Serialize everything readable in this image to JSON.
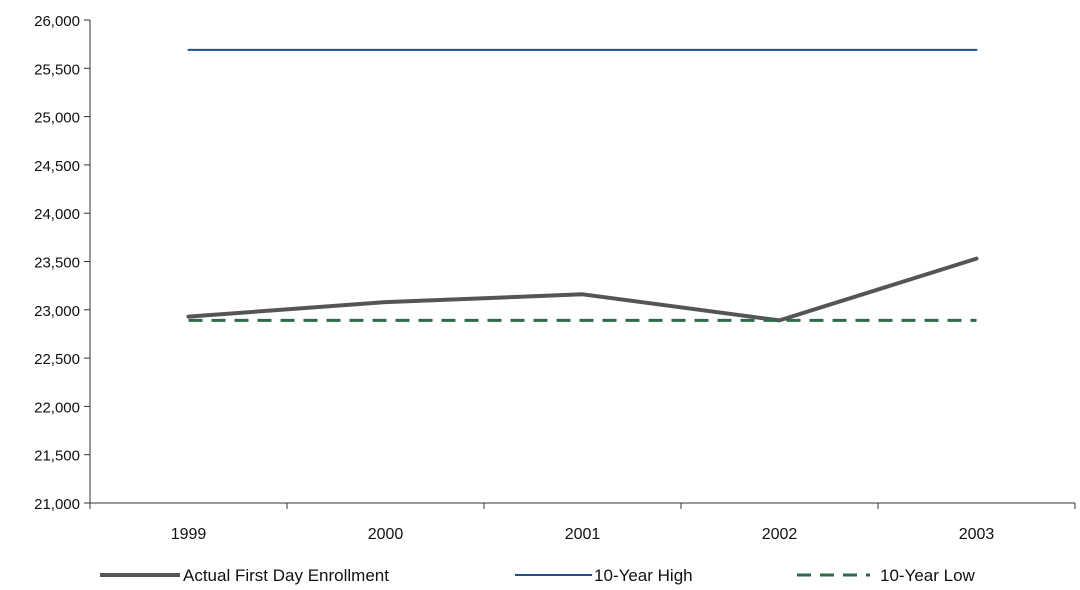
{
  "chart_data": {
    "type": "line",
    "title": "",
    "xlabel": "",
    "ylabel": "",
    "categories": [
      "1999",
      "2000",
      "2001",
      "2002",
      "2003"
    ],
    "ylim": [
      21000,
      26000
    ],
    "yticks": [
      "21,000",
      "21,500",
      "22,000",
      "22,500",
      "23,000",
      "23,500",
      "24,000",
      "24,500",
      "25,000",
      "25,500",
      "26,000"
    ],
    "ytick_values": [
      21000,
      21500,
      22000,
      22500,
      23000,
      23500,
      24000,
      24500,
      25000,
      25500,
      26000
    ],
    "grid": false,
    "legend_position": "bottom",
    "series": [
      {
        "name": "Actual First Day Enrollment",
        "values": [
          22930,
          23080,
          23160,
          22890,
          23530
        ],
        "color": "#555555",
        "style": "solid-thick"
      },
      {
        "name": "10-Year High",
        "values": [
          25690,
          25690,
          25690,
          25690,
          25690
        ],
        "color": "#1f4e8c",
        "style": "solid-thin"
      },
      {
        "name": "10-Year Low",
        "values": [
          22890,
          22890,
          22890,
          22890,
          22890
        ],
        "color": "#2e6b48",
        "style": "dashed"
      }
    ]
  }
}
